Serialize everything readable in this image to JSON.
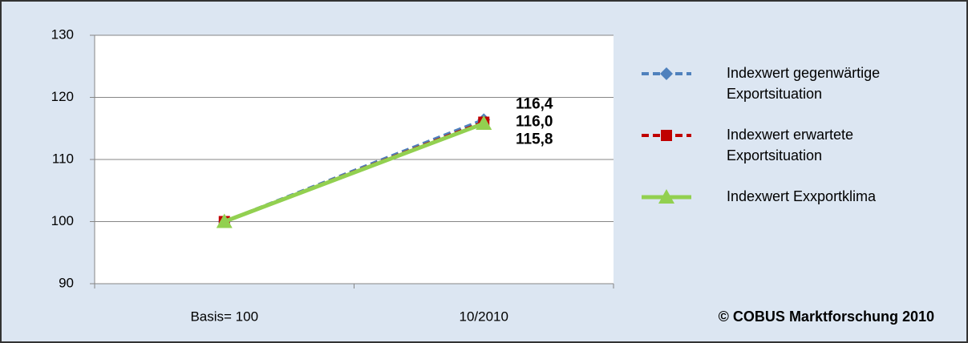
{
  "chart_data": {
    "type": "line",
    "categories": [
      "Basis= 100",
      "10/2010"
    ],
    "series": [
      {
        "name": "Indexwert gegenwärtige Exportsituation",
        "color": "#4f81bd",
        "values": [
          100,
          116.4
        ],
        "value_labels": [
          null,
          "116,4"
        ]
      },
      {
        "name": "Indexwert erwartete Exportsituation",
        "color": "#c00000",
        "values": [
          100,
          116.0
        ],
        "value_labels": [
          null,
          "116,0"
        ]
      },
      {
        "name": "Indexwert Exxportklima",
        "color": "#92d050",
        "values": [
          100,
          115.8
        ],
        "value_labels": [
          null,
          "115,8"
        ]
      }
    ],
    "ylim": [
      90,
      130
    ],
    "yticks": [
      90,
      100,
      110,
      120,
      130
    ],
    "grid": true,
    "legend": "right",
    "annotation": "© COBUS Marktforschung 2010"
  }
}
